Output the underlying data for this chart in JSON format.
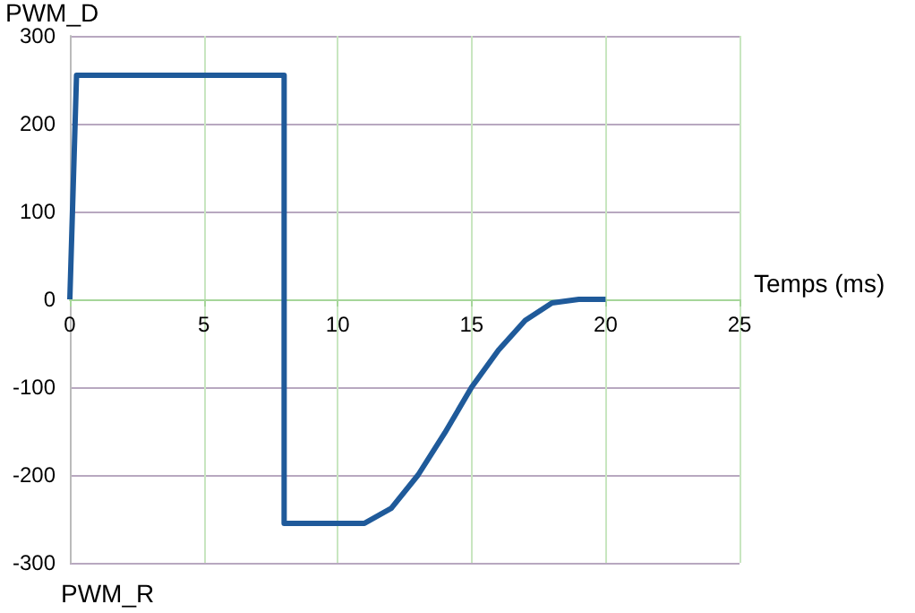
{
  "chart_data": {
    "type": "line",
    "ylabel": "PWM_D",
    "xlabel": "Temps (ms)",
    "annotations": [
      "PWM_R"
    ],
    "x": [
      0,
      0.25,
      8,
      8,
      11,
      12,
      13,
      14,
      15,
      16,
      17,
      18,
      19,
      20
    ],
    "series": [
      {
        "color": "#1f5a9a",
        "values": [
          0,
          255,
          255,
          -255,
          -255,
          -238,
          -200,
          -152,
          -100,
          -58,
          -24,
          -4,
          0,
          0
        ]
      }
    ],
    "xlim": [
      0,
      25
    ],
    "xticks": [
      0,
      5,
      10,
      15,
      20,
      25
    ],
    "ylim": [
      -300,
      300
    ],
    "yticks": [
      -300,
      -200,
      -100,
      0,
      100,
      200,
      300
    ],
    "grid": true,
    "marker": "none",
    "line_style": "solid"
  }
}
